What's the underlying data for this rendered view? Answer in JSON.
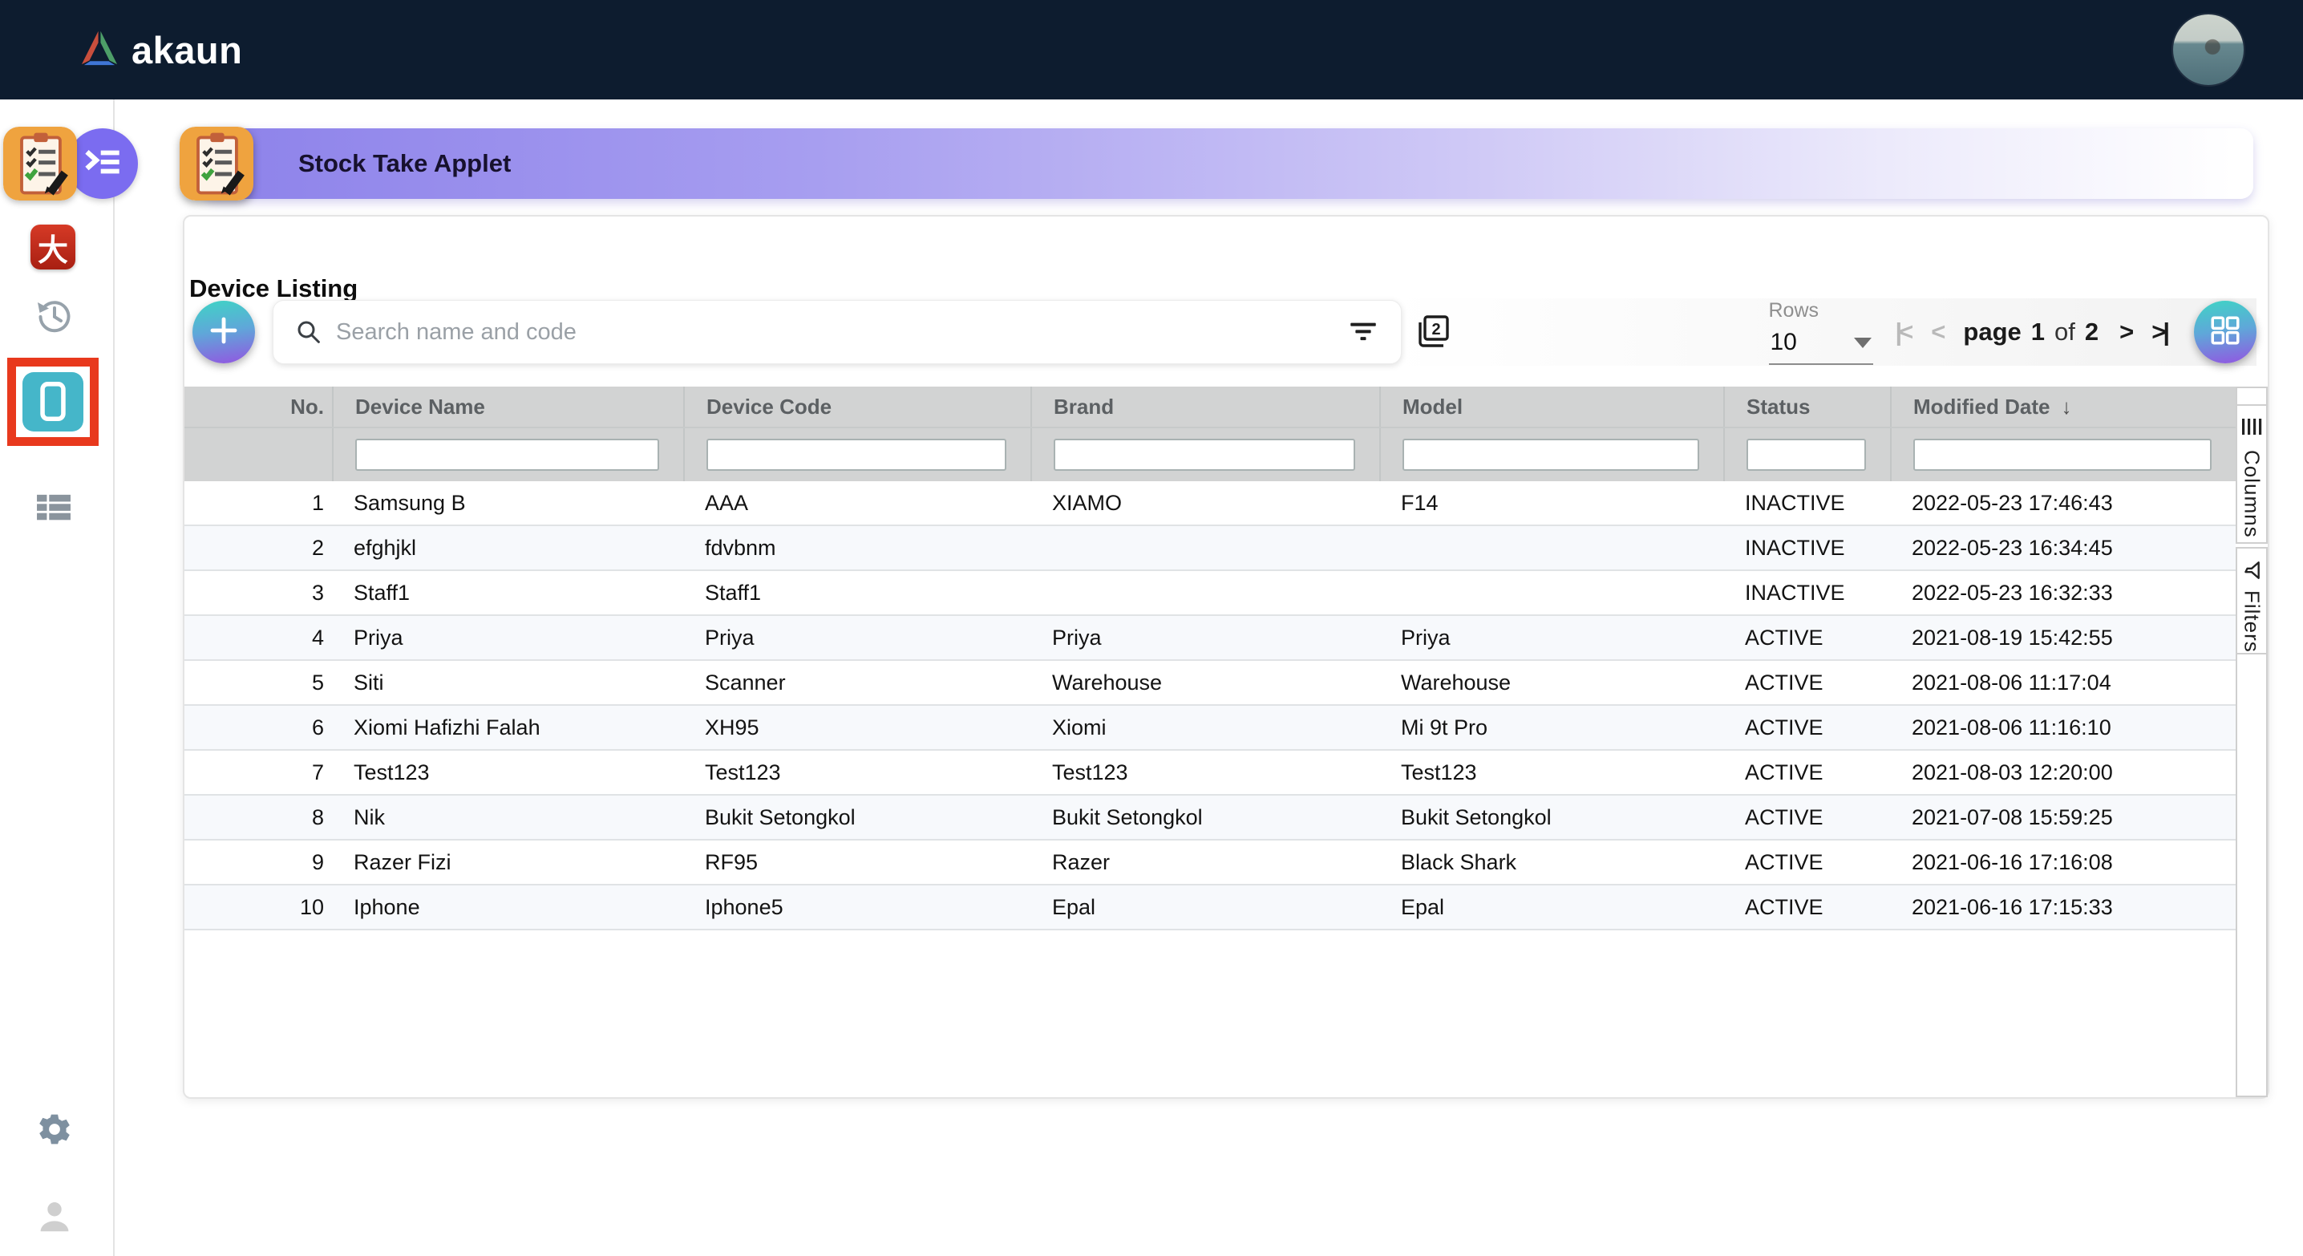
{
  "navbar": {
    "brand": "akaun",
    "logo_icon": "akaun-triangle-logo",
    "avatar_icon": "user-avatar-photo"
  },
  "sidebar": {
    "items": [
      {
        "icon": "stock-take-clipboard-icon",
        "selected": false
      },
      {
        "icon": "console-badge-icon",
        "selected": false
      },
      {
        "icon": "dahua-app-icon",
        "glyph": "大",
        "selected": false
      },
      {
        "icon": "history-icon",
        "selected": false
      },
      {
        "icon": "device-tablet-icon",
        "selected": true,
        "highlight_color": "#e8391d"
      },
      {
        "icon": "table-list-icon",
        "selected": false
      },
      {
        "icon": "settings-gear-icon",
        "selected": false
      },
      {
        "icon": "user-profile-icon",
        "selected": false
      }
    ]
  },
  "applet_header": {
    "title": "Stock Take Applet",
    "icon": "stock-take-clipboard-icon"
  },
  "main": {
    "title": "Device Listing",
    "toolbar": {
      "add_icon": "plus-icon",
      "search_icon": "search-icon",
      "search_placeholder": "Search name and code",
      "search_value": "",
      "filter_icon": "filter-list-icon",
      "pages_icon": "filter-2-pages-icon",
      "rows_label": "Rows",
      "rows_per_page": "10",
      "pagination": {
        "first_icon": "|<",
        "prev_icon": "<",
        "page_word": "page",
        "current_page": "1",
        "of_word": "of",
        "total_pages": "2",
        "next_icon": ">",
        "last_icon": ">|"
      },
      "grid_icon": "grid-view-icon"
    },
    "table": {
      "columns": [
        "No.",
        "Device Name",
        "Device Code",
        "Brand",
        "Model",
        "Status",
        "Modified Date"
      ],
      "sort": {
        "column": "Modified Date",
        "direction": "desc",
        "arrow": "↓"
      },
      "rows": [
        [
          "1",
          "Samsung B",
          "AAA",
          "XIAMO",
          "F14",
          "INACTIVE",
          "2022-05-23 17:46:43"
        ],
        [
          "2",
          "efghjkl",
          "fdvbnm",
          "",
          "",
          "INACTIVE",
          "2022-05-23 16:34:45"
        ],
        [
          "3",
          "Staff1",
          "Staff1",
          "",
          "",
          "INACTIVE",
          "2022-05-23 16:32:33"
        ],
        [
          "4",
          "Priya",
          "Priya",
          "Priya",
          "Priya",
          "ACTIVE",
          "2021-08-19 15:42:55"
        ],
        [
          "5",
          "Siti",
          "Scanner",
          "Warehouse",
          "Warehouse",
          "ACTIVE",
          "2021-08-06 11:17:04"
        ],
        [
          "6",
          "Xiomi Hafizhi Falah",
          "XH95",
          "Xiomi",
          "Mi 9t Pro",
          "ACTIVE",
          "2021-08-06 11:16:10"
        ],
        [
          "7",
          "Test123",
          "Test123",
          "Test123",
          "Test123",
          "ACTIVE",
          "2021-08-03 12:20:00"
        ],
        [
          "8",
          "Nik",
          "Bukit Setongkol",
          "Bukit Setongkol",
          "Bukit Setongkol",
          "ACTIVE",
          "2021-07-08 15:59:25"
        ],
        [
          "9",
          "Razer Fizi",
          "RF95",
          "Razer",
          "Black Shark",
          "ACTIVE",
          "2021-06-16 17:16:08"
        ],
        [
          "10",
          "Iphone",
          "Iphone5",
          "Epal",
          "Epal",
          "ACTIVE",
          "2021-06-16 17:15:33"
        ]
      ]
    },
    "side_tabs": [
      {
        "icon": "columns-icon",
        "label": "Columns"
      },
      {
        "icon": "filter-funnel-icon",
        "label": "Filters"
      }
    ]
  },
  "colors": {
    "navbar_bg": "#0d1c2f",
    "applet_bar_purple": "#8d82ea",
    "accent_gradient_top": "#3fd4c5",
    "accent_gradient_bottom": "#9355e1",
    "selected_highlight_red": "#e8391d",
    "table_header_bg": "#d2d3d3",
    "row_alt_bg": "#f7f9fc",
    "badge_purple": "#7b6cf0",
    "device_icon_teal": "#45b6c9"
  }
}
